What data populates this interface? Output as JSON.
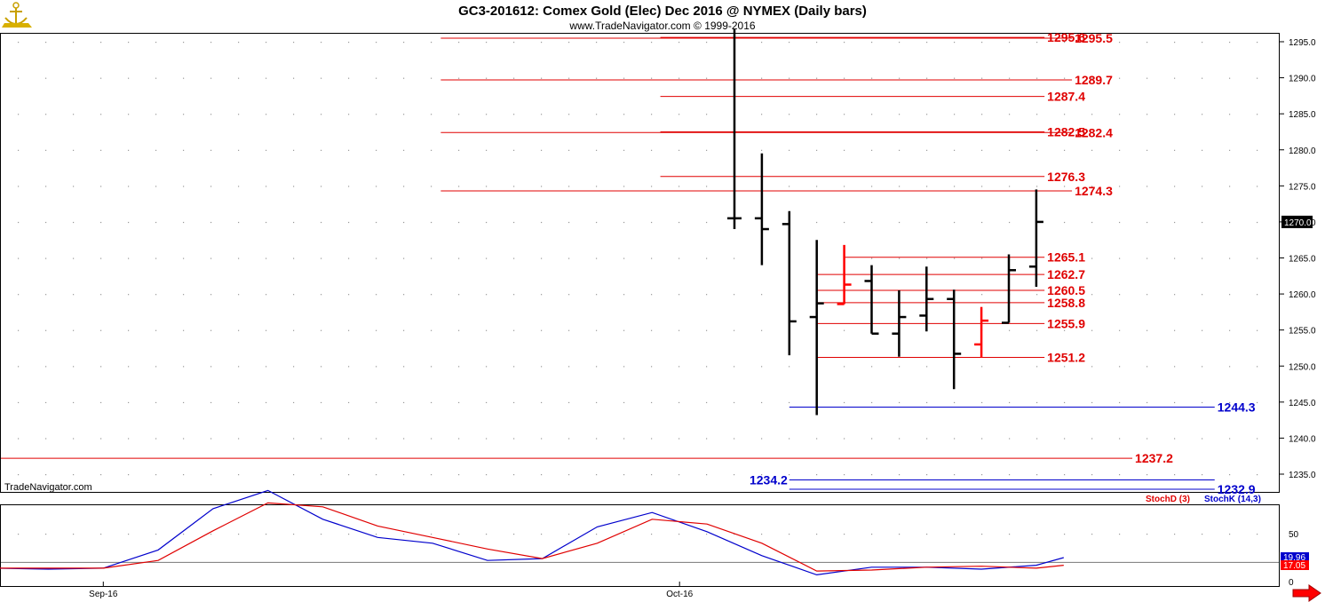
{
  "header": {
    "title": "GC3-201612:  Comex Gold (Elec) Dec 2016 @ NYMEX  (Daily bars)",
    "copyright": "www.TradeNavigator.com © 1999-2016",
    "watermark": "TradeNavigator.com"
  },
  "icons": {
    "logo": "anchor-logo-icon",
    "scroll": "red-right-arrow-icon"
  },
  "colors": {
    "bar": "#000000",
    "bar_highlight": "#ff0000",
    "resistance": "#e00000",
    "support": "#0000cc",
    "stoch_d": "#e00000",
    "stoch_k": "#0000cc",
    "grid_dots": "#9a9a9a"
  },
  "chart_data": [
    {
      "type": "ohlc",
      "ylim": [
        1231,
        1297
      ],
      "y_ticks": [
        "1235.0",
        "1240.0",
        "1245.0",
        "1250.0",
        "1255.0",
        "1260.0",
        "1265.0",
        "1270.0",
        "1275.0",
        "1280.0",
        "1285.0",
        "1290.0",
        "1295.0"
      ],
      "x_ticks": [
        {
          "label": "Sep-16",
          "bar_index": -23
        },
        {
          "label": "Oct-16",
          "bar_index": -2
        }
      ],
      "last_price": "1270.0",
      "bars": [
        {
          "open": 1270.5,
          "high": 1296.8,
          "low": 1269.0,
          "close": 1270.5,
          "color": "black"
        },
        {
          "open": 1270.5,
          "high": 1279.5,
          "low": 1264.0,
          "close": 1269.0,
          "color": "black"
        },
        {
          "open": 1269.7,
          "high": 1271.5,
          "low": 1251.5,
          "close": 1256.2,
          "color": "black"
        },
        {
          "open": 1256.8,
          "high": 1267.5,
          "low": 1243.2,
          "close": 1258.7,
          "color": "black"
        },
        {
          "open": 1258.6,
          "high": 1266.8,
          "low": 1258.6,
          "close": 1261.3,
          "color": "red"
        },
        {
          "open": 1261.8,
          "high": 1264.0,
          "low": 1254.5,
          "close": 1254.5,
          "color": "black"
        },
        {
          "open": 1254.5,
          "high": 1260.5,
          "low": 1251.3,
          "close": 1256.8,
          "color": "black"
        },
        {
          "open": 1257.0,
          "high": 1263.8,
          "low": 1254.8,
          "close": 1259.3,
          "color": "black"
        },
        {
          "open": 1259.3,
          "high": 1260.6,
          "low": 1246.8,
          "close": 1251.7,
          "color": "black"
        },
        {
          "open": 1253.0,
          "high": 1258.2,
          "low": 1251.2,
          "close": 1256.3,
          "color": "red"
        },
        {
          "open": 1256.0,
          "high": 1265.5,
          "low": 1256.0,
          "close": 1263.3,
          "color": "black"
        },
        {
          "open": 1263.8,
          "high": 1274.5,
          "low": 1261.0,
          "close": 1270.0,
          "color": "black"
        }
      ],
      "levels": [
        {
          "value": 1295.6,
          "label": "1295.6",
          "color": "red",
          "from_bar": -2.7,
          "to_bar": 11.3,
          "label_side": "right"
        },
        {
          "value": 1295.5,
          "label": "1295.5",
          "color": "red",
          "from_bar": -10.7,
          "to_bar": 12.3,
          "label_side": "right"
        },
        {
          "value": 1289.7,
          "label": "1289.7",
          "color": "red",
          "from_bar": -10.7,
          "to_bar": 12.3,
          "label_side": "right"
        },
        {
          "value": 1287.4,
          "label": "1287.4",
          "color": "red",
          "from_bar": -2.7,
          "to_bar": 11.3,
          "label_side": "right"
        },
        {
          "value": 1282.5,
          "label": "1282.5",
          "color": "red",
          "from_bar": -2.7,
          "to_bar": 11.3,
          "label_side": "right"
        },
        {
          "value": 1282.4,
          "label": "1282.4",
          "color": "red",
          "from_bar": -10.7,
          "to_bar": 12.3,
          "label_side": "right"
        },
        {
          "value": 1276.3,
          "label": "1276.3",
          "color": "red",
          "from_bar": -2.7,
          "to_bar": 11.3,
          "label_side": "right"
        },
        {
          "value": 1274.3,
          "label": "1274.3",
          "color": "red",
          "from_bar": -10.7,
          "to_bar": 12.3,
          "label_side": "right"
        },
        {
          "value": 1265.1,
          "label": "1265.1",
          "color": "red",
          "from_bar": 4.0,
          "to_bar": 11.3,
          "label_side": "right"
        },
        {
          "value": 1262.7,
          "label": "1262.7",
          "color": "red",
          "from_bar": 3.0,
          "to_bar": 11.3,
          "label_side": "right"
        },
        {
          "value": 1260.5,
          "label": "1260.5",
          "color": "red",
          "from_bar": 3.0,
          "to_bar": 11.3,
          "label_side": "right"
        },
        {
          "value": 1258.8,
          "label": "1258.8",
          "color": "red",
          "from_bar": 3.0,
          "to_bar": 11.3,
          "label_side": "right"
        },
        {
          "value": 1255.9,
          "label": "1255.9",
          "color": "red",
          "from_bar": 3.0,
          "to_bar": 11.3,
          "label_side": "right"
        },
        {
          "value": 1251.2,
          "label": "1251.2",
          "color": "red",
          "from_bar": 3.0,
          "to_bar": 11.3,
          "label_side": "right"
        },
        {
          "value": 1244.3,
          "label": "1244.3",
          "color": "blue",
          "from_bar": 2.0,
          "to_bar": 17.5,
          "label_side": "right"
        },
        {
          "value": 1237.2,
          "label": "1237.2",
          "color": "red",
          "from_bar": -27.0,
          "to_bar": 14.5,
          "label_side": "right"
        },
        {
          "value": 1234.2,
          "label": "1234.2",
          "color": "blue",
          "from_bar": 2.0,
          "to_bar": 17.5,
          "label_side": "left"
        },
        {
          "value": 1232.9,
          "label": "1232.9",
          "color": "blue",
          "from_bar": 2.0,
          "to_bar": 17.5,
          "label_side": "right"
        }
      ]
    },
    {
      "type": "line",
      "ylim": [
        0,
        100
      ],
      "y_ticks": [
        "50",
        "0"
      ],
      "legend_position": "top-right",
      "legend_order": [
        "StochD (3)",
        "StochK (14,3)"
      ],
      "reference_level": 20,
      "readouts": [
        "17.05",
        "19.96"
      ],
      "series": [
        {
          "name": "StochK (14,3)",
          "color": "blue",
          "x": [
            -27,
            -25,
            -23,
            -21,
            -19,
            -17,
            -15,
            -13,
            -11,
            -9,
            -7,
            -5,
            -3,
            -1,
            1,
            3,
            5,
            7,
            9,
            11,
            12
          ],
          "values": [
            14,
            13,
            14,
            33,
            76,
            95,
            65,
            46,
            40,
            22,
            24,
            57,
            72,
            52,
            27,
            7,
            15,
            15,
            13,
            17,
            25
          ]
        },
        {
          "name": "StochD (3)",
          "color": "red",
          "x": [
            -27,
            -25,
            -23,
            -21,
            -19,
            -17,
            -15,
            -13,
            -11,
            -9,
            -7,
            -5,
            -3,
            -1,
            1,
            3,
            5,
            7,
            9,
            11,
            12
          ],
          "values": [
            14,
            14,
            14,
            22,
            53,
            82,
            78,
            58,
            46,
            34,
            24,
            40,
            65,
            60,
            40,
            11,
            12,
            15,
            16,
            14,
            17
          ]
        }
      ]
    }
  ]
}
